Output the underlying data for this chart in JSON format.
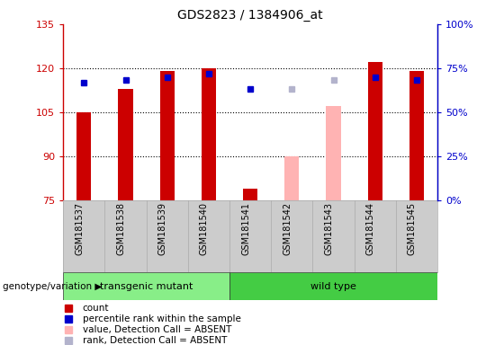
{
  "title": "GDS2823 / 1384906_at",
  "samples": [
    "GSM181537",
    "GSM181538",
    "GSM181539",
    "GSM181540",
    "GSM181541",
    "GSM181542",
    "GSM181543",
    "GSM181544",
    "GSM181545"
  ],
  "count_values": [
    105,
    113,
    119,
    120,
    79,
    null,
    null,
    122,
    119
  ],
  "count_absent_values": [
    null,
    null,
    null,
    null,
    null,
    90,
    107,
    null,
    null
  ],
  "rank_values": [
    115,
    116,
    117,
    118,
    113,
    null,
    null,
    117,
    116
  ],
  "rank_absent_values": [
    null,
    null,
    null,
    null,
    null,
    113,
    116,
    null,
    null
  ],
  "ylim_left": [
    75,
    135
  ],
  "ylim_right": [
    0,
    100
  ],
  "yticks_left": [
    75,
    90,
    105,
    120,
    135
  ],
  "yticks_right": [
    0,
    25,
    50,
    75,
    100
  ],
  "ytick_labels_right": [
    "0%",
    "25%",
    "50%",
    "75%",
    "100%"
  ],
  "bar_bottom": 75,
  "color_count": "#cc0000",
  "color_rank": "#0000cc",
  "color_count_absent": "#ffb3b3",
  "color_rank_absent": "#b3b3cc",
  "groups": [
    {
      "label": "transgenic mutant",
      "indices": [
        0,
        1,
        2,
        3
      ],
      "color": "#88ee88"
    },
    {
      "label": "wild type",
      "indices": [
        4,
        5,
        6,
        7,
        8
      ],
      "color": "#44cc44"
    }
  ],
  "legend_items": [
    {
      "label": "count",
      "color": "#cc0000"
    },
    {
      "label": "percentile rank within the sample",
      "color": "#0000cc"
    },
    {
      "label": "value, Detection Call = ABSENT",
      "color": "#ffb3b3"
    },
    {
      "label": "rank, Detection Call = ABSENT",
      "color": "#b3b3cc"
    }
  ],
  "bar_width": 0.35,
  "rank_marker_size": 5,
  "grid_yticks": [
    90,
    105,
    120
  ],
  "background_color": "#ffffff",
  "plot_bg_color": "#ffffff",
  "label_bg_color": "#cccccc",
  "label_divider_color": "#aaaaaa"
}
